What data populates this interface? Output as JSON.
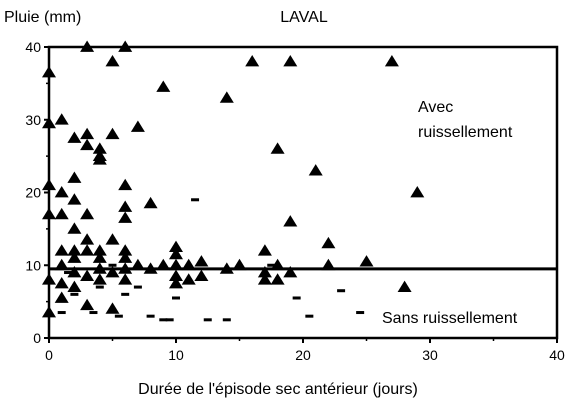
{
  "chart_data": {
    "type": "scatter",
    "title": "LAVAL",
    "xlabel": "Durée de l'épisode sec antérieur (jours)",
    "ylabel": "Pluie (mm)",
    "xlim": [
      0,
      40
    ],
    "ylim": [
      0,
      40
    ],
    "xticks": [
      "0",
      "10",
      "20",
      "30",
      "40"
    ],
    "yticks": [
      "0",
      "10",
      "20",
      "30",
      "40"
    ],
    "grid": false,
    "threshold_y": 9.5,
    "annotations": {
      "with_runoff_line1": "Avec",
      "with_runoff_line2": "ruissellement",
      "without_runoff": "Sans ruissellement"
    },
    "series": [
      {
        "marker": "triangle",
        "x": [
          0,
          0,
          0,
          0,
          0,
          0,
          1,
          1,
          1,
          1,
          1,
          1,
          1,
          2,
          2,
          2,
          2,
          2,
          2,
          2,
          2,
          3,
          3,
          3,
          3,
          3,
          3,
          3,
          3,
          4,
          4,
          4,
          4,
          4,
          4,
          4,
          5,
          5,
          5,
          5,
          5,
          6,
          6,
          6,
          6,
          6,
          6,
          6,
          6,
          7,
          7,
          8,
          8,
          9,
          9,
          10,
          10,
          10,
          10,
          10,
          11,
          11,
          12,
          12,
          14,
          14,
          15,
          16,
          17,
          17,
          17,
          18,
          18,
          18,
          19,
          19,
          19,
          21,
          22,
          22,
          25,
          27,
          28,
          29
        ],
        "y": [
          36.5,
          29.5,
          21,
          17,
          8,
          3.5,
          30,
          20,
          17,
          12,
          10,
          7.5,
          5.5,
          27.5,
          22,
          19,
          15,
          12,
          11,
          9,
          7,
          40,
          28,
          26.5,
          17,
          13.5,
          12,
          8.5,
          4.5,
          26,
          25,
          24.5,
          12,
          11,
          9.5,
          8,
          38,
          28,
          13.5,
          9,
          4,
          40,
          21,
          18,
          16.5,
          12,
          11,
          9.5,
          8,
          29,
          10,
          18.5,
          9.5,
          34.5,
          10,
          12.5,
          11.5,
          10,
          8.5,
          7.5,
          10,
          8,
          10.5,
          8.5,
          33,
          9.5,
          10,
          38,
          12,
          9,
          8,
          26,
          10,
          8,
          38,
          16,
          9,
          23,
          13,
          10,
          10.5,
          38,
          7,
          20
        ]
      },
      {
        "marker": "dash",
        "x": [
          1,
          1.5,
          2,
          3.5,
          4,
          5,
          5.5,
          6,
          7,
          8,
          9,
          9.5,
          10,
          11.5,
          12.5,
          14,
          17.5,
          19.5,
          20.5,
          23,
          24.5
        ],
        "y": [
          3.5,
          9,
          6,
          3.5,
          7,
          10,
          3,
          6,
          7,
          3,
          2.5,
          2.5,
          5.5,
          19,
          2.5,
          2.5,
          10,
          5.5,
          3,
          6.5,
          3.5
        ]
      }
    ]
  }
}
